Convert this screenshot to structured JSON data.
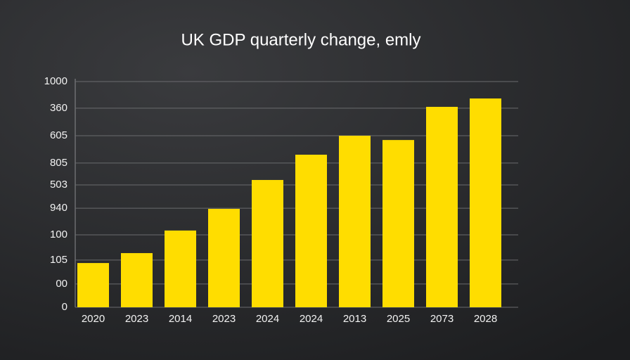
{
  "chart_data": {
    "type": "bar",
    "title": "UK GDP quarterly change, emly",
    "categories": [
      "2020",
      "2023",
      "2014",
      "2023",
      "2024",
      "2024",
      "2013",
      "2025",
      "2073",
      "2028"
    ],
    "values": [
      196,
      240,
      340,
      436,
      564,
      676,
      760,
      741,
      888,
      925
    ],
    "color": "#ffdd00",
    "ylim": [
      0,
      1000
    ],
    "yticks": [
      0,
      {
        "value": 103,
        "label": "00"
      },
      {
        "value": 209,
        "label": "105"
      },
      {
        "value": 321,
        "label": "100"
      },
      {
        "value": 439,
        "label": "940"
      },
      {
        "value": 542,
        "label": "503"
      },
      {
        "value": 639,
        "label": "805"
      },
      {
        "value": 760,
        "label": "605"
      },
      {
        "value": 882,
        "label": "360"
      },
      1000
    ],
    "grid": true
  }
}
